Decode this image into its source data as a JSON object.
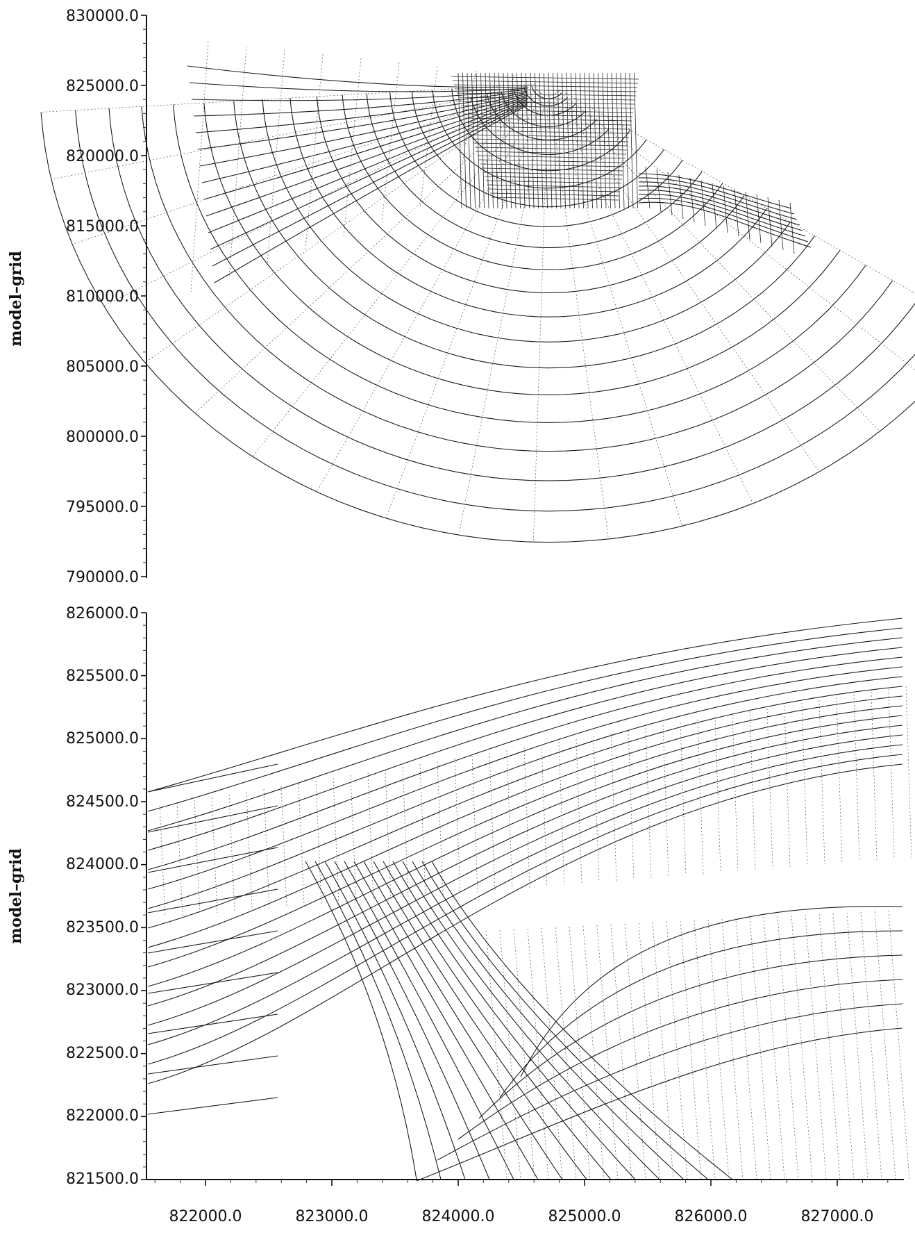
{
  "panels": [
    {
      "id": "overview",
      "ylabel": "model–grid",
      "y_tick_labels": [
        "830000.0",
        "825000.0",
        "820000.0",
        "815000.0",
        "810000.0",
        "805000.0",
        "800000.0",
        "795000.0",
        "790000.0"
      ]
    },
    {
      "id": "detail",
      "ylabel": "model–grid",
      "y_tick_labels": [
        "826000.0",
        "825500.0",
        "825000.0",
        "824500.0",
        "824000.0",
        "823500.0",
        "823000.0",
        "822500.0",
        "822000.0",
        "821500.0"
      ],
      "x_tick_labels": [
        "822000.0",
        "823000.0",
        "824000.0",
        "825000.0",
        "826000.0",
        "827000.0"
      ]
    }
  ],
  "chart_data": [
    {
      "type": "other",
      "description_kind": "curvilinear model grid (overview)",
      "ylabel": "model–grid",
      "ylim": [
        790000,
        830000
      ],
      "y_ticks": [
        790000,
        795000,
        800000,
        805000,
        810000,
        815000,
        820000,
        825000,
        830000
      ]
    },
    {
      "type": "other",
      "description_kind": "curvilinear model grid (detail)",
      "ylabel": "model–grid",
      "ylim": [
        821500,
        826000
      ],
      "y_ticks": [
        821500,
        822000,
        822500,
        823000,
        823500,
        824000,
        824500,
        825000,
        825500,
        826000
      ],
      "xlim": [
        821500,
        827500
      ],
      "x_ticks": [
        822000,
        823000,
        824000,
        825000,
        826000,
        827000
      ]
    }
  ]
}
